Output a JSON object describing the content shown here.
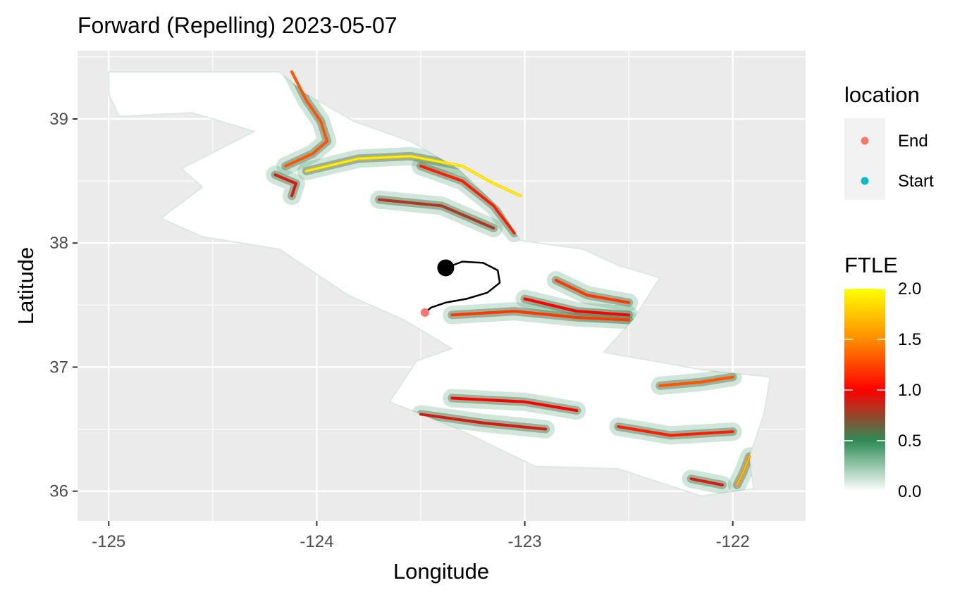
{
  "chart_data": {
    "type": "heatmap",
    "title": "Forward (Repelling) 2023-05-07",
    "xlabel": "Longitude",
    "ylabel": "Latitude",
    "xlim": [
      -125.15,
      -121.65
    ],
    "ylim": [
      35.76,
      39.55
    ],
    "x_ticks": [
      -125,
      -124,
      -123,
      -122
    ],
    "x_tick_labels": [
      "-125",
      "-124",
      "-123",
      "-122"
    ],
    "y_ticks": [
      36,
      37,
      38,
      39
    ],
    "y_tick_labels": [
      "36",
      "37",
      "38",
      "39"
    ],
    "grid": true,
    "panel_background": "#ebebeb",
    "gridline_color": "#ffffff",
    "ftle_field": {
      "domain_outline": [
        [
          -125.0,
          39.38
        ],
        [
          -124.18,
          39.38
        ],
        [
          -124.05,
          39.2
        ],
        [
          -123.82,
          38.98
        ],
        [
          -123.55,
          38.82
        ],
        [
          -123.32,
          38.6
        ],
        [
          -123.12,
          38.28
        ],
        [
          -123.02,
          38.02
        ],
        [
          -122.72,
          37.95
        ],
        [
          -122.55,
          37.82
        ],
        [
          -122.35,
          37.72
        ],
        [
          -122.48,
          37.38
        ],
        [
          -122.62,
          37.12
        ],
        [
          -122.15,
          36.98
        ],
        [
          -121.82,
          36.92
        ],
        [
          -121.85,
          36.62
        ],
        [
          -121.92,
          36.28
        ],
        [
          -121.9,
          36.02
        ],
        [
          -122.15,
          35.96
        ],
        [
          -122.55,
          36.18
        ],
        [
          -122.95,
          36.2
        ],
        [
          -123.32,
          36.5
        ],
        [
          -123.65,
          36.72
        ],
        [
          -123.52,
          37.05
        ],
        [
          -123.35,
          37.15
        ],
        [
          -123.58,
          37.38
        ],
        [
          -123.85,
          37.58
        ],
        [
          -124.18,
          37.95
        ],
        [
          -124.55,
          38.05
        ],
        [
          -124.75,
          38.2
        ],
        [
          -124.55,
          38.45
        ],
        [
          -124.65,
          38.6
        ],
        [
          -124.3,
          38.9
        ],
        [
          -124.6,
          39.05
        ],
        [
          -124.95,
          39.02
        ],
        [
          -125.0,
          39.2
        ]
      ],
      "ridges": [
        {
          "value": 1.3,
          "points": [
            [
              -124.12,
              39.38
            ],
            [
              -124.05,
              39.15
            ],
            [
              -123.98,
              38.98
            ],
            [
              -123.95,
              38.82
            ],
            [
              -124.02,
              38.72
            ],
            [
              -124.15,
              38.62
            ]
          ]
        },
        {
          "value": 1.8,
          "points": [
            [
              -124.05,
              38.58
            ],
            [
              -123.8,
              38.68
            ],
            [
              -123.55,
              38.7
            ],
            [
              -123.3,
              38.62
            ],
            [
              -123.15,
              38.48
            ],
            [
              -123.02,
              38.38
            ]
          ]
        },
        {
          "value": 1.1,
          "points": [
            [
              -123.5,
              38.62
            ],
            [
              -123.3,
              38.5
            ],
            [
              -123.15,
              38.3
            ],
            [
              -123.05,
              38.08
            ]
          ]
        },
        {
          "value": 0.9,
          "points": [
            [
              -124.2,
              38.55
            ],
            [
              -124.1,
              38.48
            ],
            [
              -124.12,
              38.38
            ]
          ]
        },
        {
          "value": 0.8,
          "points": [
            [
              -123.7,
              38.35
            ],
            [
              -123.4,
              38.3
            ],
            [
              -123.15,
              38.12
            ]
          ]
        },
        {
          "value": 1.2,
          "points": [
            [
              -122.85,
              37.7
            ],
            [
              -122.7,
              37.58
            ],
            [
              -122.5,
              37.52
            ]
          ]
        },
        {
          "value": 1.0,
          "points": [
            [
              -123.0,
              37.55
            ],
            [
              -122.75,
              37.45
            ],
            [
              -122.5,
              37.42
            ]
          ]
        },
        {
          "value": 1.2,
          "points": [
            [
              -123.35,
              37.42
            ],
            [
              -123.05,
              37.45
            ],
            [
              -122.75,
              37.4
            ],
            [
              -122.5,
              37.38
            ]
          ]
        },
        {
          "value": 1.3,
          "points": [
            [
              -122.35,
              36.85
            ],
            [
              -122.15,
              36.88
            ],
            [
              -122.0,
              36.92
            ]
          ]
        },
        {
          "value": 1.0,
          "points": [
            [
              -123.35,
              36.75
            ],
            [
              -123.0,
              36.72
            ],
            [
              -122.75,
              36.65
            ]
          ]
        },
        {
          "value": 0.9,
          "points": [
            [
              -123.5,
              36.62
            ],
            [
              -123.2,
              36.55
            ],
            [
              -122.9,
              36.5
            ]
          ]
        },
        {
          "value": 1.1,
          "points": [
            [
              -122.55,
              36.52
            ],
            [
              -122.3,
              36.45
            ],
            [
              -122.0,
              36.48
            ]
          ]
        },
        {
          "value": 1.5,
          "points": [
            [
              -121.92,
              36.28
            ],
            [
              -121.95,
              36.15
            ],
            [
              -121.98,
              36.05
            ]
          ]
        },
        {
          "value": 0.9,
          "points": [
            [
              -122.2,
              36.1
            ],
            [
              -122.05,
              36.05
            ]
          ]
        }
      ]
    },
    "trajectory": {
      "points": [
        [
          -123.38,
          37.8
        ],
        [
          -123.3,
          37.85
        ],
        [
          -123.2,
          37.84
        ],
        [
          -123.13,
          37.78
        ],
        [
          -123.12,
          37.68
        ],
        [
          -123.18,
          37.6
        ],
        [
          -123.28,
          37.55
        ],
        [
          -123.38,
          37.52
        ],
        [
          -123.45,
          37.48
        ],
        [
          -123.48,
          37.44
        ]
      ],
      "start": [
        -123.38,
        37.8
      ],
      "end": [
        -123.48,
        37.44
      ]
    },
    "legends": {
      "location": {
        "title": "location",
        "entries": [
          {
            "label": "End",
            "color": "#f8766d"
          },
          {
            "label": "Start",
            "color": "#00bfc4"
          }
        ]
      },
      "ftle": {
        "title": "FTLE",
        "ticks": [
          0.0,
          0.5,
          1.0,
          1.5,
          2.0
        ],
        "tick_labels": [
          "0.0",
          "0.5",
          "1.0",
          "1.5",
          "2.0"
        ],
        "range": [
          0,
          2
        ],
        "colors": [
          "#ffffff",
          "#2e8b57",
          "#ff0000",
          "#ff8c00",
          "#ffff00"
        ]
      }
    }
  }
}
